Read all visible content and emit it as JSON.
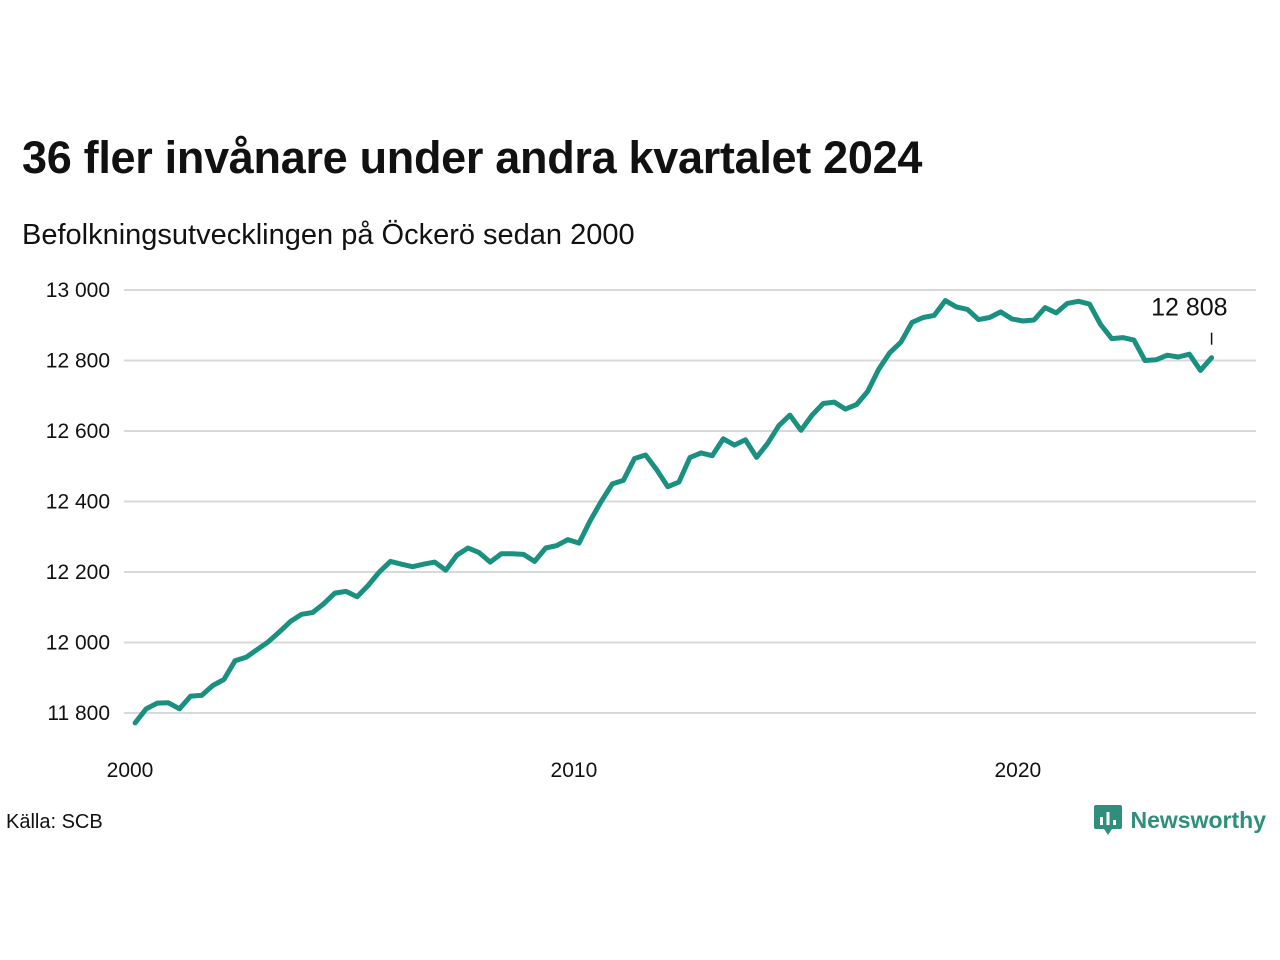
{
  "header": {
    "title": "36 fler invånare under andra kvartalet 2024",
    "subtitle": "Befolkningsutvecklingen på Öckerö sedan 2000"
  },
  "footer": {
    "source": "Källa: SCB",
    "brand": "Newsworthy"
  },
  "colors": {
    "line": "#1a9080",
    "grid": "#d9d9d9",
    "brand": "#2f8f7c"
  },
  "chart_data": {
    "type": "line",
    "title": "36 fler invånare under andra kvartalet 2024",
    "subtitle": "Befolkningsutvecklingen på Öckerö sedan 2000",
    "xlabel": "",
    "ylabel": "",
    "xlim": [
      2000,
      2025.5
    ],
    "ylim": [
      11770,
      13000
    ],
    "yticks": [
      11800,
      12000,
      12200,
      12400,
      12600,
      12800,
      13000
    ],
    "ytick_labels": [
      "11 800",
      "12 000",
      "12 200",
      "12 400",
      "12 600",
      "12 800",
      "13 000"
    ],
    "xticks": [
      2000,
      2010,
      2020
    ],
    "xtick_labels": [
      "2000",
      "2010",
      "2020"
    ],
    "grid": true,
    "legend": "none",
    "end_label": "12 808",
    "series": [
      {
        "x": [
          2000.25,
          2000.5,
          2000.75,
          2001.0,
          2001.25,
          2001.5,
          2001.75,
          2002.0,
          2002.25,
          2002.5,
          2002.75,
          2003.0,
          2003.25,
          2003.5,
          2003.75,
          2004.0,
          2004.25,
          2004.5,
          2004.75,
          2005.0,
          2005.25,
          2005.5,
          2005.75,
          2006.0,
          2006.25,
          2006.5,
          2006.75,
          2007.0,
          2007.25,
          2007.5,
          2007.75,
          2008.0,
          2008.25,
          2008.5,
          2008.75,
          2009.0,
          2009.25,
          2009.5,
          2009.75,
          2010.0,
          2010.25,
          2010.5,
          2010.75,
          2011.0,
          2011.25,
          2011.5,
          2011.75,
          2012.0,
          2012.25,
          2012.5,
          2012.75,
          2013.0,
          2013.25,
          2013.5,
          2013.75,
          2014.0,
          2014.25,
          2014.5,
          2014.75,
          2015.0,
          2015.25,
          2015.5,
          2015.75,
          2016.0,
          2016.25,
          2016.5,
          2016.75,
          2017.0,
          2017.25,
          2017.5,
          2017.75,
          2018.0,
          2018.25,
          2018.5,
          2018.75,
          2019.0,
          2019.25,
          2019.5,
          2019.75,
          2020.0,
          2020.25,
          2020.5,
          2020.75,
          2021.0,
          2021.25,
          2021.5,
          2021.75,
          2022.0,
          2022.25,
          2022.5,
          2022.75,
          2023.0,
          2023.25,
          2023.5,
          2023.75,
          2024.0,
          2024.25,
          2024.5
        ],
        "y": [
          11772,
          11812,
          11828,
          11829,
          11812,
          11848,
          11850,
          11878,
          11895,
          11948,
          11958,
          11980,
          12002,
          12030,
          12060,
          12080,
          12085,
          12110,
          12140,
          12145,
          12130,
          12162,
          12200,
          12230,
          12222,
          12215,
          12222,
          12228,
          12205,
          12248,
          12268,
          12255,
          12228,
          12252,
          12252,
          12250,
          12230,
          12268,
          12275,
          12292,
          12282,
          12345,
          12400,
          12450,
          12460,
          12522,
          12532,
          12490,
          12442,
          12455,
          12525,
          12538,
          12530,
          12578,
          12560,
          12575,
          12525,
          12565,
          12615,
          12645,
          12602,
          12645,
          12678,
          12682,
          12662,
          12675,
          12712,
          12775,
          12822,
          12852,
          12908,
          12922,
          12928,
          12970,
          12952,
          12945,
          12916,
          12922,
          12938,
          12918,
          12912,
          12915,
          12950,
          12935,
          12962,
          12968,
          12960,
          12902,
          12862,
          12865,
          12858,
          12800,
          12802,
          12815,
          12810,
          12818,
          12772,
          12808
        ]
      }
    ]
  }
}
